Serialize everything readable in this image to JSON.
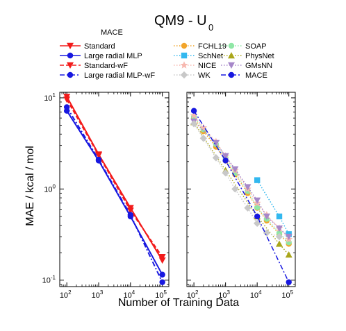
{
  "figure": {
    "title_main": "QM9 - U",
    "title_sub": "0",
    "ylabel": "MAE / kcal / mol",
    "xlabel": "Number of Training Data"
  },
  "legend_left": {
    "heading": "MACE",
    "entries": [
      "Standard",
      "Large radial MLP",
      "Standard-wF",
      "Large radial MLP-wF"
    ]
  },
  "legend_right": {
    "entries": [
      "FCHL19",
      "SOAP",
      "SchNet",
      "PhysNet",
      "NICE",
      "GMsNN",
      "WK",
      "MACE"
    ]
  },
  "axis": {
    "xticks": [
      {
        "base": "10",
        "exp": "2"
      },
      {
        "base": "10",
        "exp": "3"
      },
      {
        "base": "10",
        "exp": "4"
      },
      {
        "base": "10",
        "exp": "5"
      }
    ],
    "yticks": [
      {
        "base": "10",
        "exp": "1"
      },
      {
        "base": "10",
        "exp": "0"
      },
      {
        "base": "10",
        "exp": "-1"
      }
    ]
  },
  "chart_data": [
    {
      "type": "line",
      "panel": "left",
      "title": "MACE",
      "xscale": "log",
      "yscale": "log",
      "xlim": [
        60,
        160000
      ],
      "ylim": [
        0.085,
        11.5
      ],
      "xlabel": "Number of Training Data",
      "ylabel": "MAE / kcal / mol",
      "legend_position": "top-left (above plot)",
      "series": [
        {
          "name": "Standard",
          "color": "#f21b1b",
          "marker": "triangle-down",
          "dash": "solid",
          "x": [
            100,
            1000,
            10000,
            100000
          ],
          "y": [
            10.3,
            2.4,
            0.62,
            0.165
          ]
        },
        {
          "name": "Large radial MLP",
          "color": "#1818e0",
          "marker": "circle",
          "dash": "solid",
          "x": [
            100,
            1000,
            10000,
            100000
          ],
          "y": [
            7.2,
            2.05,
            0.5,
            0.115
          ]
        },
        {
          "name": "Standard-wF",
          "color": "#f21b1b",
          "marker": "triangle-down",
          "dash": "dashed",
          "x": [
            100,
            1000,
            10000,
            100000
          ],
          "y": [
            9.6,
            2.35,
            0.58,
            0.18
          ]
        },
        {
          "name": "Large radial MLP-wF",
          "color": "#1818e0",
          "marker": "circle",
          "dash": "dashdot",
          "x": [
            100,
            1000,
            10000,
            100000
          ],
          "y": [
            7.9,
            2.1,
            0.52,
            0.095
          ]
        }
      ]
    },
    {
      "type": "line",
      "panel": "right",
      "xscale": "log",
      "yscale": "log",
      "xlim": [
        60,
        160000
      ],
      "ylim": [
        0.085,
        11.5
      ],
      "legend_position": "top-right (above plot)",
      "series": [
        {
          "name": "FCHL19",
          "color": "#f2a52b",
          "marker": "circle",
          "dash": "dotted",
          "x": [
            100,
            200,
            500,
            1000,
            2000,
            5000,
            10000,
            20000,
            50000,
            100000
          ],
          "y": [
            6.0,
            4.3,
            2.9,
            2.05,
            1.45,
            0.9,
            0.62,
            0.45,
            0.32,
            0.25
          ]
        },
        {
          "name": "SOAP",
          "color": "#8fe7a6",
          "marker": "circle",
          "dash": "dotted",
          "x": [
            100,
            200,
            500,
            1000,
            2000,
            5000,
            10000,
            20000,
            50000,
            100000
          ],
          "y": [
            6.2,
            4.5,
            3.1,
            2.2,
            1.5,
            0.95,
            0.63,
            0.47,
            0.33,
            0.26
          ]
        },
        {
          "name": "SchNet",
          "color": "#33b8ef",
          "marker": "square",
          "dash": "dotted",
          "x": [
            10000,
            50000,
            100000
          ],
          "y": [
            1.25,
            0.5,
            0.32
          ]
        },
        {
          "name": "PhysNet",
          "color": "#aaa61a",
          "marker": "triangle-up",
          "dash": "dotted",
          "x": [
            100,
            1000,
            10000,
            50000,
            100000
          ],
          "y": [
            5.4,
            1.6,
            0.5,
            0.25,
            0.19
          ]
        },
        {
          "name": "NICE",
          "color": "#f7b8b0",
          "marker": "star",
          "dash": "dotted",
          "x": [
            100,
            200,
            500,
            1000,
            2000,
            5000,
            10000,
            20000,
            50000,
            100000
          ],
          "y": [
            6.4,
            4.7,
            3.3,
            2.3,
            1.6,
            1.0,
            0.7,
            0.52,
            0.37,
            0.28
          ]
        },
        {
          "name": "GMsNN",
          "color": "#a687c9",
          "marker": "triangle-down",
          "dash": "dotted",
          "x": [
            100,
            500,
            1000,
            2000,
            5000,
            10000,
            20000,
            50000,
            100000
          ],
          "y": [
            5.5,
            3.2,
            2.3,
            1.65,
            1.05,
            0.75,
            0.5,
            0.37,
            0.3
          ]
        },
        {
          "name": "WK",
          "color": "#c8c8c8",
          "marker": "diamond",
          "dash": "dotted",
          "x": [
            100,
            200,
            500,
            1000,
            2000,
            5000,
            10000,
            20000,
            50000
          ],
          "y": [
            5.2,
            3.6,
            2.2,
            1.5,
            1.0,
            0.62,
            0.42,
            0.33,
            0.3
          ]
        },
        {
          "name": "MACE",
          "color": "#1818e0",
          "marker": "circle",
          "dash": "dashdot",
          "x": [
            100,
            1000,
            10000,
            100000
          ],
          "y": [
            7.2,
            2.05,
            0.5,
            0.095
          ]
        }
      ]
    }
  ]
}
